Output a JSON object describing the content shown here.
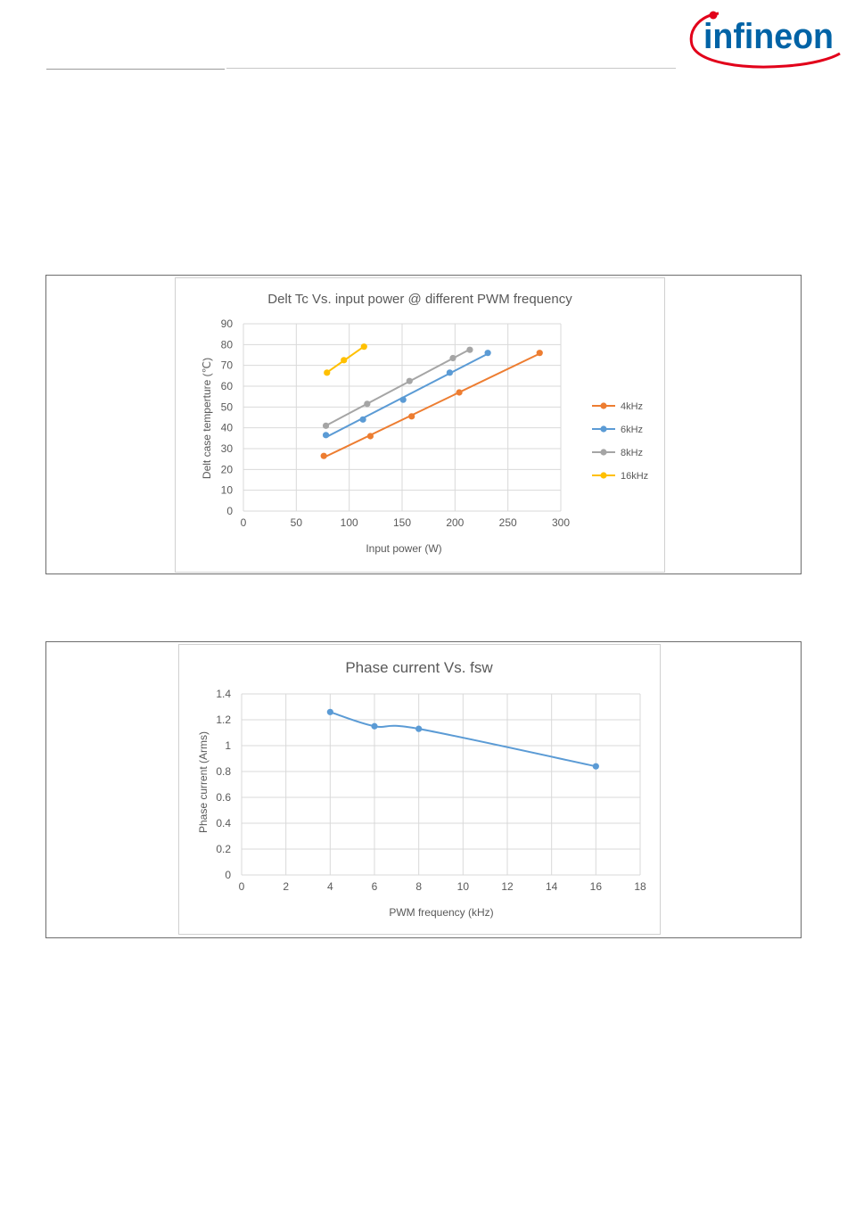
{
  "header": {
    "logo_text": "infineon",
    "brand_color": "#0063a6",
    "arc_color": "#e2001a"
  },
  "colors": {
    "gridline": "#d9d9d9",
    "axis_text": "#595959",
    "title_text": "#595959",
    "plot_border": "#d0d0d0"
  },
  "chart_data": [
    {
      "type": "line",
      "title": "Delt Tc Vs. input power  @ different PWM frequency",
      "xlabel": "Input power  (W)",
      "ylabel": "Delt case temperture  (℃)",
      "xlim": [
        0,
        300
      ],
      "ylim": [
        0,
        90
      ],
      "xticks": [
        "0",
        "50",
        "100",
        "150",
        "200",
        "250",
        "300"
      ],
      "yticks": [
        "0",
        "10",
        "20",
        "30",
        "40",
        "50",
        "60",
        "70",
        "80",
        "90"
      ],
      "grid": true,
      "legend_position": "right",
      "series": [
        {
          "name": "4kHz",
          "color": "#ed7d31",
          "x": [
            76,
            120,
            159,
            204,
            280
          ],
          "y": [
            26.5,
            36,
            45.5,
            57,
            76
          ]
        },
        {
          "name": "6kHz",
          "color": "#5b9bd5",
          "x": [
            78,
            113,
            151,
            195,
            231
          ],
          "y": [
            36.5,
            44,
            53.5,
            66.5,
            76
          ]
        },
        {
          "name": "8kHz",
          "color": "#a5a5a5",
          "x": [
            78,
            117,
            157,
            198,
            214
          ],
          "y": [
            41,
            51.5,
            62.5,
            73.5,
            77.5
          ]
        },
        {
          "name": "16kHz",
          "color": "#ffc000",
          "x": [
            79,
            95,
            114
          ],
          "y": [
            66.5,
            72.5,
            79
          ]
        }
      ]
    },
    {
      "type": "line",
      "title": "Phase current Vs. fsw",
      "xlabel": "PWM frequency (kHz)",
      "ylabel": "Phase current (Arms)",
      "xlim": [
        0,
        18
      ],
      "ylim": [
        0,
        1.4
      ],
      "xticks": [
        "0",
        "2",
        "4",
        "6",
        "8",
        "10",
        "12",
        "14",
        "16",
        "18"
      ],
      "yticks": [
        "0",
        "0.2",
        "0.4",
        "0.6",
        "0.8",
        "1",
        "1.2",
        "1.4"
      ],
      "grid": true,
      "legend_position": "none",
      "series": [
        {
          "color": "#5b9bd5",
          "x": [
            4,
            6,
            8,
            16
          ],
          "y": [
            1.26,
            1.15,
            1.13,
            0.84
          ]
        }
      ]
    }
  ]
}
